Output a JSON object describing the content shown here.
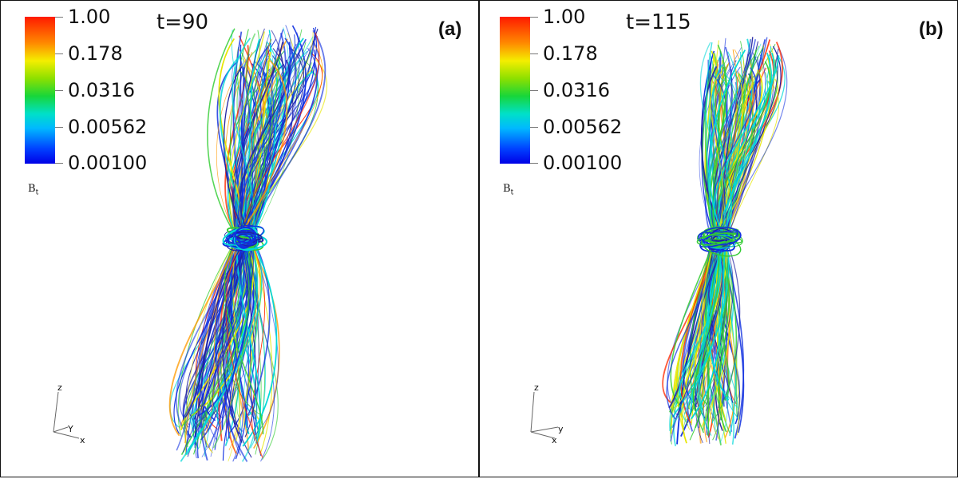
{
  "panels": [
    {
      "time": "t=90",
      "label": "(a)",
      "colorbar": {
        "ticks": [
          "1.00",
          "0.178",
          "0.0316",
          "0.00562",
          "0.00100"
        ],
        "quantity": "B",
        "quantity_sub": "t"
      },
      "axes": {
        "z": "z",
        "y": "Y",
        "x": "x"
      }
    },
    {
      "time": "t=115",
      "label": "(b)",
      "colorbar": {
        "ticks": [
          "1.00",
          "0.178",
          "0.0316",
          "0.00562",
          "0.00100"
        ],
        "quantity": "B",
        "quantity_sub": "t"
      },
      "axes": {
        "z": "z",
        "y": "y",
        "x": "x"
      }
    }
  ],
  "colors": {
    "red": "#ff2a00",
    "orange": "#ff9a00",
    "yellow": "#e6e600",
    "green": "#33cc33",
    "cyan": "#00d8d8",
    "blue": "#1030e0",
    "navy": "#2020a0"
  }
}
